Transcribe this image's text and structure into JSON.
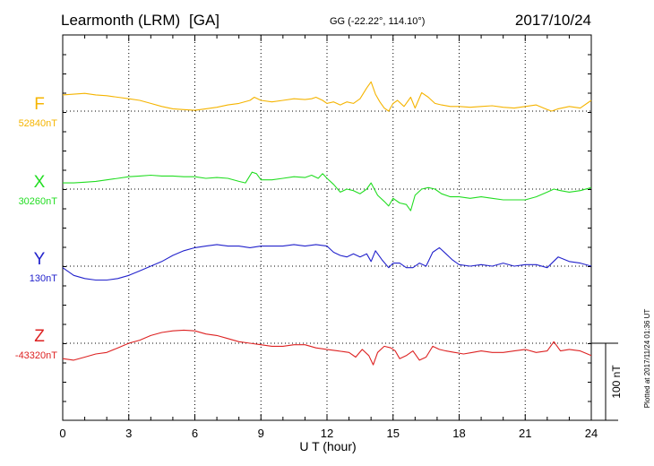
{
  "header": {
    "station": "Learmonth (LRM)",
    "code": "[GA]",
    "coords": "GG (-22.22°, 114.10°)",
    "date": "2017/10/24"
  },
  "footer": {
    "plotted": "Plotted at 2017/11/24 01:36 UT"
  },
  "chart_data": {
    "type": "line",
    "xlabel": "U T (hour)",
    "xlim": [
      0,
      24
    ],
    "xticks": [
      "0",
      "3",
      "6",
      "9",
      "12",
      "15",
      "18",
      "21",
      "24"
    ],
    "scale_bar": {
      "label": "100 nT",
      "value_nT": 100
    },
    "grid": true,
    "series": [
      {
        "name": "F",
        "baseline_label": "52840nT",
        "baseline_nT": 52840,
        "color": "#f5b400",
        "x": [
          0,
          0.5,
          1,
          1.5,
          2,
          2.5,
          3,
          3.5,
          4,
          4.5,
          5,
          5.5,
          6,
          6.5,
          7,
          7.5,
          8,
          8.5,
          8.7,
          9,
          9.5,
          10,
          10.5,
          11,
          11.3,
          11.5,
          11.8,
          12,
          12.3,
          12.6,
          12.9,
          13.2,
          13.5,
          13.8,
          14,
          14.2,
          14.4,
          14.6,
          14.8,
          15,
          15.2,
          15.5,
          15.8,
          16,
          16.3,
          16.6,
          16.9,
          17.2,
          17.6,
          18,
          18.5,
          19,
          19.5,
          20,
          20.5,
          21,
          21.5,
          22,
          22.2,
          22.5,
          23,
          23.5,
          24
        ],
        "values": [
          21,
          22,
          23,
          21,
          20,
          18,
          16,
          14,
          10,
          6,
          3,
          2,
          1,
          3,
          5,
          8,
          10,
          14,
          18,
          14,
          12,
          14,
          16,
          15,
          16,
          18,
          14,
          10,
          12,
          8,
          12,
          10,
          16,
          30,
          38,
          22,
          12,
          4,
          0,
          10,
          14,
          6,
          18,
          4,
          24,
          18,
          10,
          8,
          6,
          6,
          5,
          6,
          7,
          5,
          4,
          6,
          8,
          2,
          0,
          3,
          6,
          4,
          14
        ]
      },
      {
        "name": "X",
        "baseline_label": "30260nT",
        "baseline_nT": 30260,
        "color": "#22dd22",
        "x": [
          0,
          0.5,
          1,
          1.5,
          2,
          2.5,
          3,
          3.5,
          4,
          4.5,
          5,
          5.5,
          6,
          6.5,
          7,
          7.5,
          8,
          8.3,
          8.6,
          8.8,
          9,
          9.5,
          10,
          10.5,
          11,
          11.3,
          11.6,
          11.8,
          12,
          12.3,
          12.6,
          12.9,
          13.2,
          13.5,
          13.8,
          14,
          14.3,
          14.6,
          14.8,
          15,
          15.3,
          15.6,
          15.8,
          16,
          16.3,
          16.6,
          16.9,
          17.2,
          17.6,
          18,
          18.5,
          19,
          19.5,
          20,
          20.5,
          21,
          21.5,
          22,
          22.3,
          22.6,
          23,
          23.5,
          24
        ],
        "values": [
          8,
          8,
          9,
          10,
          12,
          14,
          16,
          17,
          18,
          17,
          17,
          16,
          16,
          14,
          15,
          14,
          10,
          8,
          22,
          20,
          12,
          12,
          14,
          16,
          15,
          18,
          14,
          20,
          14,
          6,
          -4,
          0,
          -2,
          -6,
          0,
          8,
          -8,
          -16,
          -22,
          -12,
          -18,
          -20,
          -28,
          -8,
          0,
          2,
          0,
          -6,
          -10,
          -10,
          -12,
          -10,
          -12,
          -14,
          -14,
          -14,
          -10,
          -4,
          0,
          -2,
          -4,
          -2,
          2
        ]
      },
      {
        "name": "Y",
        "baseline_label": "130nT",
        "baseline_nT": 130,
        "color": "#2222cc",
        "x": [
          0,
          0.5,
          1,
          1.5,
          2,
          2.5,
          3,
          3.5,
          4,
          4.5,
          5,
          5.5,
          6,
          6.5,
          7,
          7.5,
          8,
          8.5,
          9,
          9.5,
          10,
          10.5,
          11,
          11.5,
          12,
          12.3,
          12.6,
          12.9,
          13.2,
          13.5,
          13.8,
          14,
          14.2,
          14.5,
          14.8,
          15,
          15.3,
          15.6,
          15.9,
          16.2,
          16.5,
          16.8,
          17.1,
          17.4,
          17.7,
          18,
          18.5,
          19,
          19.5,
          20,
          20.5,
          21,
          21.5,
          22,
          22.5,
          23,
          23.5,
          24
        ],
        "values": [
          -2,
          -12,
          -16,
          -18,
          -18,
          -16,
          -12,
          -6,
          0,
          6,
          14,
          20,
          24,
          26,
          28,
          26,
          26,
          24,
          26,
          26,
          26,
          28,
          26,
          28,
          26,
          18,
          14,
          12,
          16,
          12,
          16,
          6,
          20,
          8,
          -2,
          4,
          4,
          -2,
          -2,
          4,
          0,
          18,
          24,
          16,
          8,
          2,
          0,
          2,
          0,
          4,
          0,
          2,
          2,
          -2,
          12,
          6,
          4,
          0
        ]
      },
      {
        "name": "Z",
        "baseline_label": "-43320nT",
        "baseline_nT": -43320,
        "color": "#dd2222",
        "x": [
          0,
          0.5,
          1,
          1.5,
          2,
          2.5,
          3,
          3.5,
          4,
          4.5,
          5,
          5.5,
          6,
          6.5,
          7,
          7.5,
          8,
          8.5,
          9,
          9.5,
          10,
          10.5,
          11,
          11.5,
          12,
          12.5,
          13,
          13.3,
          13.6,
          13.9,
          14.1,
          14.3,
          14.6,
          14.9,
          15.1,
          15.3,
          15.6,
          15.9,
          16.2,
          16.5,
          16.8,
          17.1,
          17.4,
          17.8,
          18.2,
          18.6,
          19,
          19.5,
          20,
          20.5,
          21,
          21.5,
          22,
          22.3,
          22.6,
          23,
          23.5,
          24
        ],
        "values": [
          -20,
          -22,
          -18,
          -14,
          -12,
          -6,
          0,
          4,
          10,
          14,
          16,
          17,
          16,
          12,
          10,
          6,
          2,
          0,
          -2,
          -4,
          -4,
          -2,
          -2,
          -6,
          -8,
          -10,
          -12,
          -18,
          -8,
          -16,
          -28,
          -12,
          -4,
          -6,
          -10,
          -20,
          -16,
          -10,
          -22,
          -18,
          -4,
          -8,
          -10,
          -12,
          -14,
          -12,
          -10,
          -12,
          -12,
          -10,
          -8,
          -12,
          -10,
          2,
          -10,
          -8,
          -10,
          -16
        ]
      }
    ]
  }
}
